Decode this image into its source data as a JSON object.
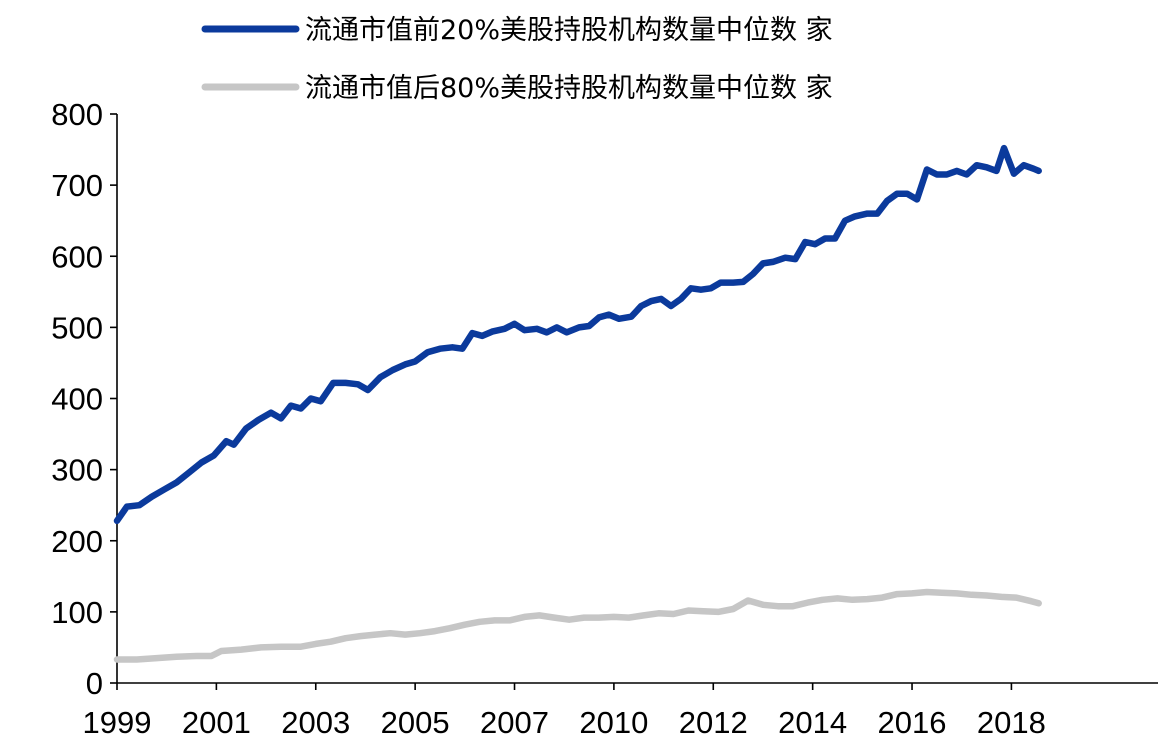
{
  "chart_data": {
    "type": "line",
    "title": "",
    "xlabel": "",
    "ylabel": "",
    "ylim": [
      0,
      800
    ],
    "yticks": [
      0,
      100,
      200,
      300,
      400,
      500,
      600,
      700,
      800
    ],
    "x_range": [
      1999.0,
      2019.95
    ],
    "x_tick_labels": [
      {
        "value": 1999,
        "label": "1999"
      },
      {
        "value": 2001,
        "label": "2001"
      },
      {
        "value": 2003,
        "label": "2003"
      },
      {
        "value": 2005,
        "label": "2005"
      },
      {
        "value": 2007,
        "label": "2007"
      },
      {
        "value": 2009,
        "label": "2010"
      },
      {
        "value": 2011,
        "label": "2012"
      },
      {
        "value": 2013,
        "label": "2014"
      },
      {
        "value": 2015,
        "label": "2016"
      },
      {
        "value": 2017,
        "label": "2018"
      }
    ],
    "grid": false,
    "legend_position": "top",
    "series": [
      {
        "name": "流通市值前20%美股持股机构数量中位数 家",
        "color": "#0b3a9c",
        "points": [
          [
            1999.0,
            228
          ],
          [
            1999.2,
            248
          ],
          [
            1999.45,
            250
          ],
          [
            1999.7,
            262
          ],
          [
            1999.95,
            272
          ],
          [
            2000.2,
            282
          ],
          [
            2000.45,
            296
          ],
          [
            2000.7,
            310
          ],
          [
            2000.95,
            320
          ],
          [
            2001.2,
            340
          ],
          [
            2001.35,
            335
          ],
          [
            2001.6,
            358
          ],
          [
            2001.85,
            370
          ],
          [
            2002.1,
            380
          ],
          [
            2002.3,
            372
          ],
          [
            2002.5,
            390
          ],
          [
            2002.7,
            386
          ],
          [
            2002.9,
            400
          ],
          [
            2003.1,
            396
          ],
          [
            2003.35,
            422
          ],
          [
            2003.6,
            422
          ],
          [
            2003.85,
            420
          ],
          [
            2004.05,
            412
          ],
          [
            2004.3,
            430
          ],
          [
            2004.55,
            440
          ],
          [
            2004.8,
            448
          ],
          [
            2005.0,
            452
          ],
          [
            2005.25,
            465
          ],
          [
            2005.5,
            470
          ],
          [
            2005.75,
            472
          ],
          [
            2005.95,
            470
          ],
          [
            2006.15,
            492
          ],
          [
            2006.35,
            488
          ],
          [
            2006.55,
            494
          ],
          [
            2006.8,
            498
          ],
          [
            2007.0,
            505
          ],
          [
            2007.2,
            496
          ],
          [
            2007.45,
            498
          ],
          [
            2007.65,
            493
          ],
          [
            2007.85,
            500
          ],
          [
            2008.05,
            493
          ],
          [
            2008.3,
            500
          ],
          [
            2008.5,
            502
          ],
          [
            2008.7,
            514
          ],
          [
            2008.9,
            518
          ],
          [
            2009.1,
            512
          ],
          [
            2009.35,
            515
          ],
          [
            2009.55,
            530
          ],
          [
            2009.75,
            537
          ],
          [
            2009.95,
            540
          ],
          [
            2010.15,
            530
          ],
          [
            2010.35,
            540
          ],
          [
            2010.55,
            555
          ],
          [
            2010.75,
            553
          ],
          [
            2010.95,
            555
          ],
          [
            2011.15,
            563
          ],
          [
            2011.4,
            563
          ],
          [
            2011.6,
            564
          ],
          [
            2011.8,
            575
          ],
          [
            2012.0,
            590
          ],
          [
            2012.2,
            592
          ],
          [
            2012.45,
            598
          ],
          [
            2012.65,
            596
          ],
          [
            2012.85,
            620
          ],
          [
            2013.05,
            617
          ],
          [
            2013.25,
            625
          ],
          [
            2013.45,
            625
          ],
          [
            2013.65,
            650
          ],
          [
            2013.85,
            656
          ],
          [
            2014.1,
            660
          ],
          [
            2014.3,
            660
          ],
          [
            2014.5,
            678
          ],
          [
            2014.7,
            688
          ],
          [
            2014.9,
            688
          ],
          [
            2015.1,
            680
          ],
          [
            2015.3,
            722
          ],
          [
            2015.5,
            715
          ],
          [
            2015.7,
            715
          ],
          [
            2015.9,
            720
          ],
          [
            2016.1,
            715
          ],
          [
            2016.3,
            728
          ],
          [
            2016.5,
            725
          ],
          [
            2016.7,
            720
          ],
          [
            2016.85,
            752
          ],
          [
            2017.05,
            716
          ],
          [
            2017.25,
            728
          ],
          [
            2017.45,
            723
          ],
          [
            2017.55,
            720
          ]
        ]
      },
      {
        "name": "流通市值后80%美股持股机构数量中位数 家",
        "color": "#c6c6c6",
        "points": [
          [
            1999.0,
            33
          ],
          [
            1999.4,
            33
          ],
          [
            1999.8,
            35
          ],
          [
            2000.2,
            37
          ],
          [
            2000.6,
            38
          ],
          [
            2000.9,
            38
          ],
          [
            2001.1,
            45
          ],
          [
            2001.5,
            47
          ],
          [
            2001.9,
            50
          ],
          [
            2002.3,
            51
          ],
          [
            2002.7,
            51
          ],
          [
            2003.0,
            55
          ],
          [
            2003.3,
            58
          ],
          [
            2003.6,
            63
          ],
          [
            2003.9,
            66
          ],
          [
            2004.2,
            68
          ],
          [
            2004.5,
            70
          ],
          [
            2004.8,
            68
          ],
          [
            2005.1,
            70
          ],
          [
            2005.4,
            73
          ],
          [
            2005.7,
            77
          ],
          [
            2006.0,
            82
          ],
          [
            2006.3,
            86
          ],
          [
            2006.6,
            88
          ],
          [
            2006.9,
            88
          ],
          [
            2007.2,
            93
          ],
          [
            2007.5,
            95
          ],
          [
            2007.8,
            92
          ],
          [
            2008.1,
            89
          ],
          [
            2008.4,
            92
          ],
          [
            2008.7,
            92
          ],
          [
            2009.0,
            93
          ],
          [
            2009.3,
            92
          ],
          [
            2009.6,
            95
          ],
          [
            2009.9,
            98
          ],
          [
            2010.2,
            97
          ],
          [
            2010.5,
            102
          ],
          [
            2010.8,
            101
          ],
          [
            2011.1,
            100
          ],
          [
            2011.4,
            104
          ],
          [
            2011.7,
            116
          ],
          [
            2012.0,
            110
          ],
          [
            2012.3,
            108
          ],
          [
            2012.6,
            108
          ],
          [
            2012.9,
            113
          ],
          [
            2013.2,
            117
          ],
          [
            2013.5,
            119
          ],
          [
            2013.8,
            117
          ],
          [
            2014.1,
            118
          ],
          [
            2014.4,
            120
          ],
          [
            2014.7,
            125
          ],
          [
            2015.0,
            126
          ],
          [
            2015.3,
            128
          ],
          [
            2015.6,
            127
          ],
          [
            2015.9,
            126
          ],
          [
            2016.2,
            124
          ],
          [
            2016.5,
            123
          ],
          [
            2016.8,
            121
          ],
          [
            2017.1,
            120
          ],
          [
            2017.4,
            115
          ],
          [
            2017.55,
            112
          ]
        ]
      }
    ]
  }
}
